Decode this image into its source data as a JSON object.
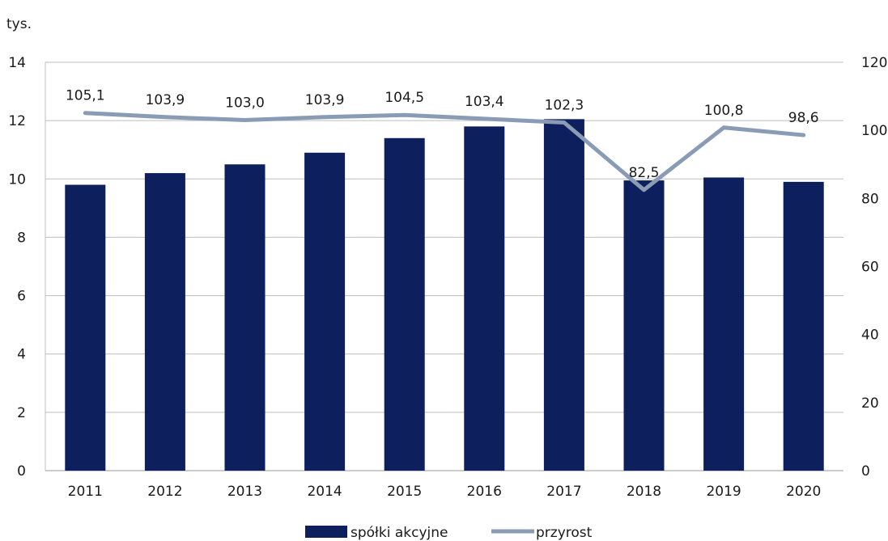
{
  "chart_data": {
    "type": "bar",
    "y_unit_label": "tys.",
    "categories": [
      "2011",
      "2012",
      "2013",
      "2014",
      "2015",
      "2016",
      "2017",
      "2018",
      "2019",
      "2020"
    ],
    "series": [
      {
        "name": "spółki akcyjne",
        "type": "bar",
        "axis": "left",
        "color": "#0d1f5c",
        "values": [
          9.8,
          10.2,
          10.5,
          10.9,
          11.4,
          11.8,
          12.05,
          9.95,
          10.05,
          9.9
        ]
      },
      {
        "name": "przyrost",
        "type": "line",
        "axis": "right",
        "color": "#8a9bb5",
        "values": [
          105.1,
          103.9,
          103.0,
          103.9,
          104.5,
          103.4,
          102.3,
          82.5,
          100.8,
          98.6
        ],
        "labels": [
          "105,1",
          "103,9",
          "103,0",
          "103,9",
          "104,5",
          "103,4",
          "102,3",
          "82,5",
          "100,8",
          "98,6"
        ]
      }
    ],
    "y_left": {
      "min": 0,
      "max": 14,
      "ticks": [
        "0",
        "2",
        "4",
        "6",
        "8",
        "10",
        "12",
        "14"
      ]
    },
    "y_right": {
      "min": 0,
      "max": 120,
      "ticks": [
        "0",
        "20",
        "40",
        "60",
        "80",
        "100",
        "120"
      ]
    },
    "grid": true,
    "legend_position": "bottom"
  }
}
